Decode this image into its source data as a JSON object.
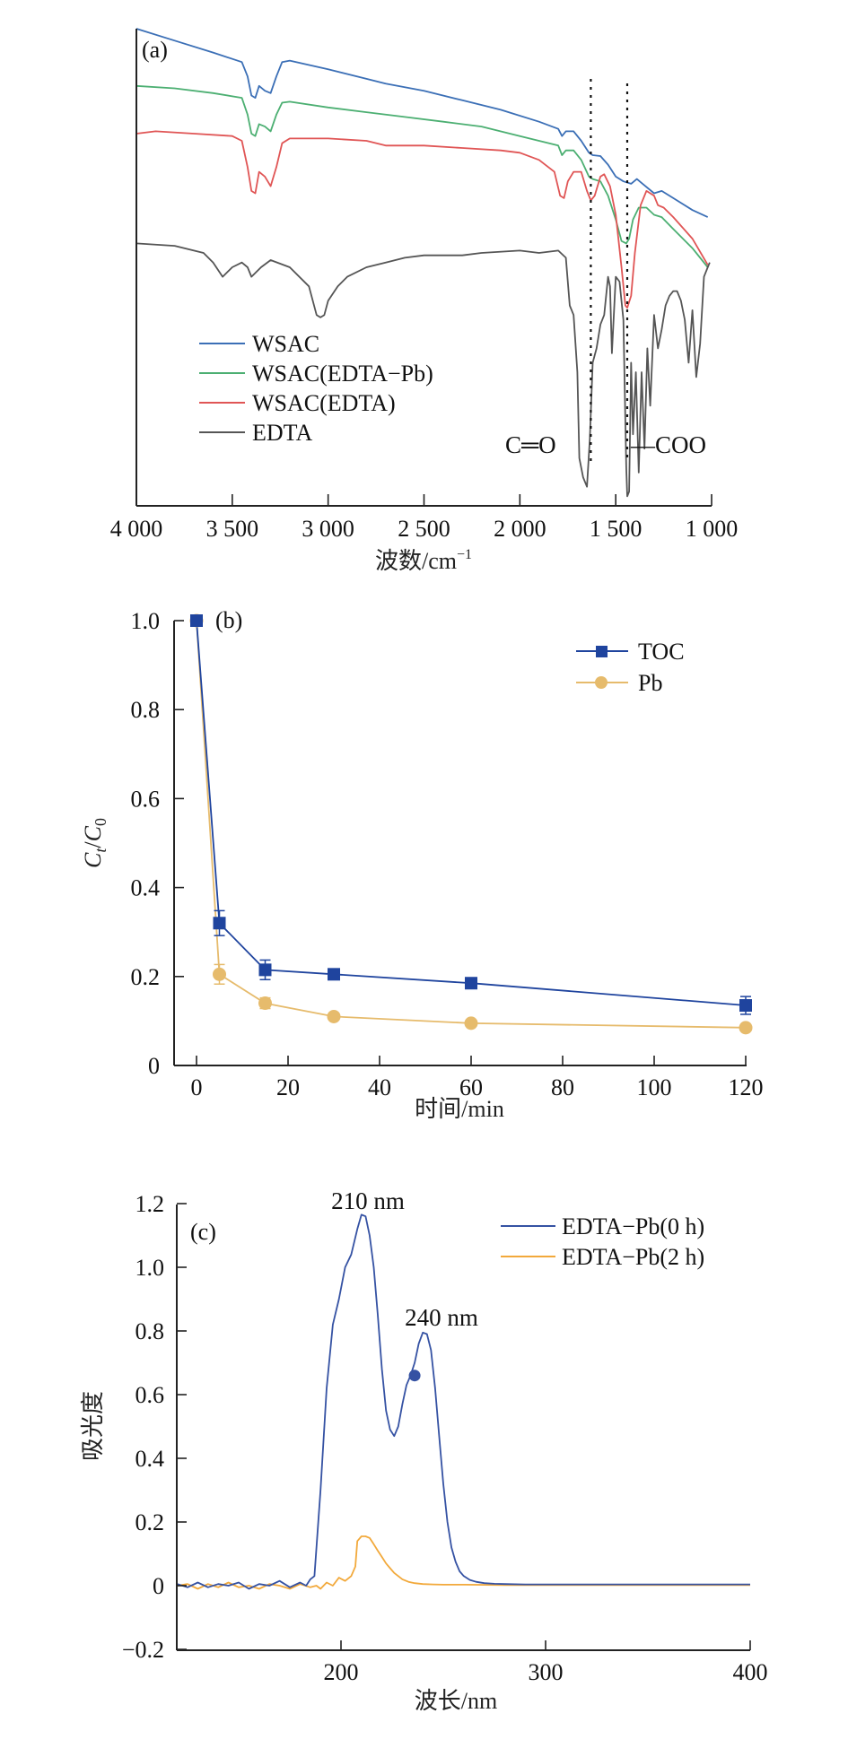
{
  "chart_data": [
    {
      "type": "line",
      "panel_label": "(a)",
      "title": "",
      "xlabel": "波数/cm⁻¹",
      "ylabel": "",
      "xlim": [
        4000,
        1000
      ],
      "ylim": [
        0,
        100
      ],
      "x_reversed": true,
      "grid": false,
      "legend_position": "bottom-left",
      "x_ticks": [
        4000,
        3500,
        3000,
        2500,
        2000,
        1500,
        1000
      ],
      "x_tick_labels": [
        "4 000",
        "3 500",
        "3 000",
        "2 500",
        "2 000",
        "1 500",
        "1 000"
      ],
      "reference_lines": [
        {
          "x": 1630,
          "style": "dotted",
          "label": "C═O"
        },
        {
          "x": 1440,
          "style": "dotted",
          "label": "—COO"
        }
      ],
      "series": [
        {
          "name": "WSAC",
          "color": "#3b6fb6",
          "x": [
            4000,
            3800,
            3600,
            3450,
            3420,
            3400,
            3380,
            3360,
            3330,
            3300,
            3270,
            3240,
            3200,
            3000,
            2800,
            2700,
            2500,
            2300,
            2100,
            1900,
            1800,
            1780,
            1760,
            1720,
            1680,
            1640,
            1620,
            1580,
            1540,
            1500,
            1460,
            1420,
            1390,
            1360,
            1300,
            1260,
            1200,
            1100,
            1020
          ],
          "y": [
            100,
            97.5,
            95,
            93,
            90,
            86,
            85.5,
            88,
            87,
            86.5,
            90,
            93,
            93.3,
            91.5,
            89.5,
            88.5,
            87,
            85,
            83,
            80.5,
            79,
            77.5,
            78.5,
            78.5,
            76.5,
            74,
            73.5,
            73.3,
            71.5,
            69,
            68,
            67.5,
            68.5,
            67.5,
            65.5,
            66,
            64.5,
            62,
            60.5
          ]
        },
        {
          "name": "WSAC(EDTA−Pb)",
          "color": "#4caf72",
          "x": [
            4000,
            3800,
            3600,
            3450,
            3420,
            3400,
            3380,
            3360,
            3330,
            3300,
            3270,
            3240,
            3200,
            3000,
            2800,
            2600,
            2400,
            2200,
            2000,
            1900,
            1800,
            1780,
            1760,
            1720,
            1680,
            1640,
            1620,
            1580,
            1540,
            1500,
            1470,
            1445,
            1430,
            1410,
            1380,
            1340,
            1300,
            1260,
            1200,
            1100,
            1020
          ],
          "y": [
            88,
            87.5,
            86.5,
            85.5,
            82,
            78,
            77.5,
            80,
            79.5,
            78.5,
            82,
            84.5,
            84.7,
            83.5,
            82.5,
            81.5,
            80.5,
            79.5,
            77.5,
            76.5,
            75.5,
            73.5,
            74.5,
            74.5,
            72.5,
            69,
            68.5,
            68,
            65,
            60,
            55.5,
            55,
            56,
            60,
            62.5,
            62.5,
            61,
            60.5,
            58,
            54,
            50
          ]
        },
        {
          "name": "WSAC(EDTA)",
          "color": "#e05555",
          "x": [
            4000,
            3900,
            3700,
            3500,
            3450,
            3420,
            3400,
            3380,
            3360,
            3330,
            3300,
            3270,
            3240,
            3200,
            3000,
            2800,
            2700,
            2500,
            2300,
            2100,
            2000,
            1900,
            1820,
            1790,
            1770,
            1750,
            1720,
            1680,
            1650,
            1630,
            1610,
            1580,
            1560,
            1530,
            1500,
            1470,
            1450,
            1440,
            1420,
            1400,
            1370,
            1340,
            1300,
            1280,
            1250,
            1200,
            1100,
            1020
          ],
          "y": [
            78,
            78.5,
            78,
            77.5,
            76.5,
            71,
            66,
            65.5,
            70,
            69,
            67,
            71,
            76,
            77,
            77,
            76.5,
            75.5,
            75.5,
            75,
            74.5,
            74,
            72.5,
            70,
            65,
            64.5,
            68,
            70,
            70,
            66,
            64,
            65,
            69,
            69.5,
            67,
            61,
            50,
            42,
            41.5,
            44,
            53,
            63,
            66,
            65,
            63,
            62.5,
            60.5,
            56,
            50.5
          ]
        },
        {
          "name": "EDTA",
          "color": "#555555",
          "x": [
            4000,
            3800,
            3650,
            3600,
            3550,
            3500,
            3450,
            3420,
            3400,
            3350,
            3300,
            3200,
            3100,
            3060,
            3040,
            3020,
            3000,
            2950,
            2900,
            2800,
            2700,
            2600,
            2500,
            2300,
            2200,
            2000,
            1900,
            1800,
            1760,
            1740,
            1720,
            1700,
            1690,
            1670,
            1650,
            1635,
            1620,
            1600,
            1580,
            1560,
            1540,
            1530,
            1520,
            1500,
            1480,
            1460,
            1445,
            1440,
            1430,
            1420,
            1410,
            1395,
            1380,
            1365,
            1350,
            1335,
            1320,
            1300,
            1280,
            1260,
            1240,
            1220,
            1200,
            1180,
            1160,
            1140,
            1120,
            1100,
            1080,
            1060,
            1040,
            1020,
            1010
          ],
          "y": [
            55,
            54.5,
            53,
            51,
            48,
            50,
            51,
            50,
            48,
            50,
            51.5,
            50,
            46,
            40,
            39.5,
            40,
            43,
            46,
            48,
            50,
            51,
            52,
            52.5,
            52.5,
            53,
            53.5,
            53,
            53.5,
            52,
            42,
            40,
            28,
            10,
            6,
            4,
            14,
            30,
            33,
            38,
            40,
            48,
            46,
            32,
            48,
            47,
            39,
            8,
            2,
            3,
            30,
            15,
            28,
            7,
            28,
            12,
            33,
            21,
            40,
            33,
            37,
            42,
            44,
            45,
            45,
            43,
            39,
            30,
            41,
            27,
            34,
            48,
            50,
            51
          ]
        }
      ],
      "legend": [
        "WSAC",
        "WSAC(EDTA−Pb)",
        "WSAC(EDTA)",
        "EDTA"
      ]
    },
    {
      "type": "line",
      "panel_label": "(b)",
      "title": "",
      "xlabel": "时间/min",
      "ylabel": "Ct/C0",
      "ylabel_parts": {
        "main": "C",
        "sub1": "t",
        "slash": "/",
        "main2": "C",
        "sub2": "0"
      },
      "xlim": [
        -4,
        120
      ],
      "ylim": [
        0,
        1.0
      ],
      "x_ticks": [
        0,
        20,
        40,
        60,
        80,
        100,
        120
      ],
      "x_tick_labels": [
        "0",
        "20",
        "40",
        "60",
        "80",
        "100",
        "120"
      ],
      "y_ticks": [
        0,
        0.2,
        0.4,
        0.6,
        0.8,
        1.0
      ],
      "y_tick_labels": [
        "0",
        "0.2",
        "0.4",
        "0.6",
        "0.8",
        "1.0"
      ],
      "grid": false,
      "legend_position": "top-right",
      "series": [
        {
          "name": "TOC",
          "color": "#1f449e",
          "marker": "square",
          "x": [
            0,
            5,
            15,
            30,
            60,
            120
          ],
          "y": [
            1.0,
            0.32,
            0.215,
            0.205,
            0.185,
            0.135
          ],
          "error": [
            0,
            0.028,
            0.022,
            0,
            0,
            0.02
          ]
        },
        {
          "name": "Pb",
          "color": "#e6bb6c",
          "marker": "circle",
          "x": [
            0,
            5,
            15,
            30,
            60,
            120
          ],
          "y": [
            1.0,
            0.205,
            0.14,
            0.11,
            0.095,
            0.085
          ],
          "error": [
            0,
            0.022,
            0.012,
            0,
            0,
            0
          ]
        }
      ],
      "legend": [
        "TOC",
        "Pb"
      ]
    },
    {
      "type": "line",
      "panel_label": "(c)",
      "title": "",
      "xlabel": "波长/nm",
      "ylabel": "吸光度",
      "xlim": [
        120,
        400
      ],
      "ylim": [
        -0.2,
        1.2
      ],
      "x_ticks": [
        200,
        300,
        400
      ],
      "x_tick_labels": [
        "200",
        "300",
        "400"
      ],
      "y_ticks": [
        -0.2,
        0,
        0.2,
        0.4,
        0.6,
        0.8,
        1.0,
        1.2
      ],
      "y_tick_labels": [
        "−0.2",
        "0",
        "0.2",
        "0.4",
        "0.6",
        "0.8",
        "1.0",
        "1.2"
      ],
      "grid": false,
      "legend_position": "top-right",
      "annotations": [
        {
          "text": "210 nm",
          "x": 210,
          "y": 1.165
        },
        {
          "text": "240 nm",
          "x": 240,
          "y": 0.795
        }
      ],
      "highlight_point": {
        "x": 236,
        "y": 0.66
      },
      "series": [
        {
          "name": "EDTA−Pb(0 h)",
          "color": "#3552a3",
          "x": [
            120,
            125,
            130,
            135,
            140,
            145,
            150,
            155,
            160,
            165,
            170,
            175,
            180,
            183,
            185,
            187,
            190,
            193,
            196,
            199,
            202,
            205,
            208,
            210,
            212,
            214,
            216,
            218,
            220,
            222,
            224,
            226,
            228,
            230,
            232,
            234,
            236,
            238,
            240,
            242,
            244,
            246,
            248,
            250,
            252,
            254,
            256,
            258,
            260,
            263,
            266,
            270,
            275,
            280,
            290,
            300,
            320,
            340,
            360,
            380,
            400
          ],
          "y": [
            0.005,
            -0.005,
            0.01,
            -0.005,
            0.005,
            0.0,
            0.01,
            -0.01,
            0.005,
            0.0,
            0.015,
            -0.005,
            0.01,
            0.0,
            0.02,
            0.03,
            0.3,
            0.62,
            0.82,
            0.9,
            1.0,
            1.04,
            1.12,
            1.165,
            1.16,
            1.1,
            1.0,
            0.85,
            0.68,
            0.55,
            0.49,
            0.47,
            0.5,
            0.57,
            0.63,
            0.66,
            0.7,
            0.76,
            0.795,
            0.79,
            0.74,
            0.62,
            0.47,
            0.32,
            0.2,
            0.12,
            0.075,
            0.045,
            0.03,
            0.018,
            0.012,
            0.008,
            0.006,
            0.005,
            0.004,
            0.004,
            0.004,
            0.004,
            0.004,
            0.004,
            0.004
          ]
        },
        {
          "name": "EDTA−Pb(2 h)",
          "color": "#f2a93b",
          "x": [
            120,
            125,
            130,
            135,
            140,
            145,
            150,
            155,
            160,
            165,
            170,
            175,
            180,
            185,
            188,
            190,
            193,
            196,
            199,
            202,
            205,
            207,
            208,
            210,
            212,
            214,
            216,
            218,
            220,
            222,
            224,
            226,
            228,
            230,
            233,
            236,
            240,
            245,
            250,
            260,
            280,
            300,
            340,
            380,
            400
          ],
          "y": [
            0.0,
            0.005,
            -0.01,
            0.005,
            -0.005,
            0.01,
            -0.005,
            0.0,
            -0.01,
            0.005,
            0.0,
            -0.01,
            0.005,
            -0.005,
            0.0,
            -0.01,
            0.01,
            0.0,
            0.025,
            0.015,
            0.03,
            0.06,
            0.14,
            0.155,
            0.155,
            0.15,
            0.13,
            0.11,
            0.09,
            0.07,
            0.055,
            0.04,
            0.03,
            0.02,
            0.012,
            0.008,
            0.005,
            0.004,
            0.003,
            0.003,
            0.002,
            0.002,
            0.002,
            0.002,
            0.002
          ]
        }
      ],
      "legend": [
        "EDTA−Pb(0 h)",
        "EDTA−Pb(2 h)"
      ]
    }
  ]
}
